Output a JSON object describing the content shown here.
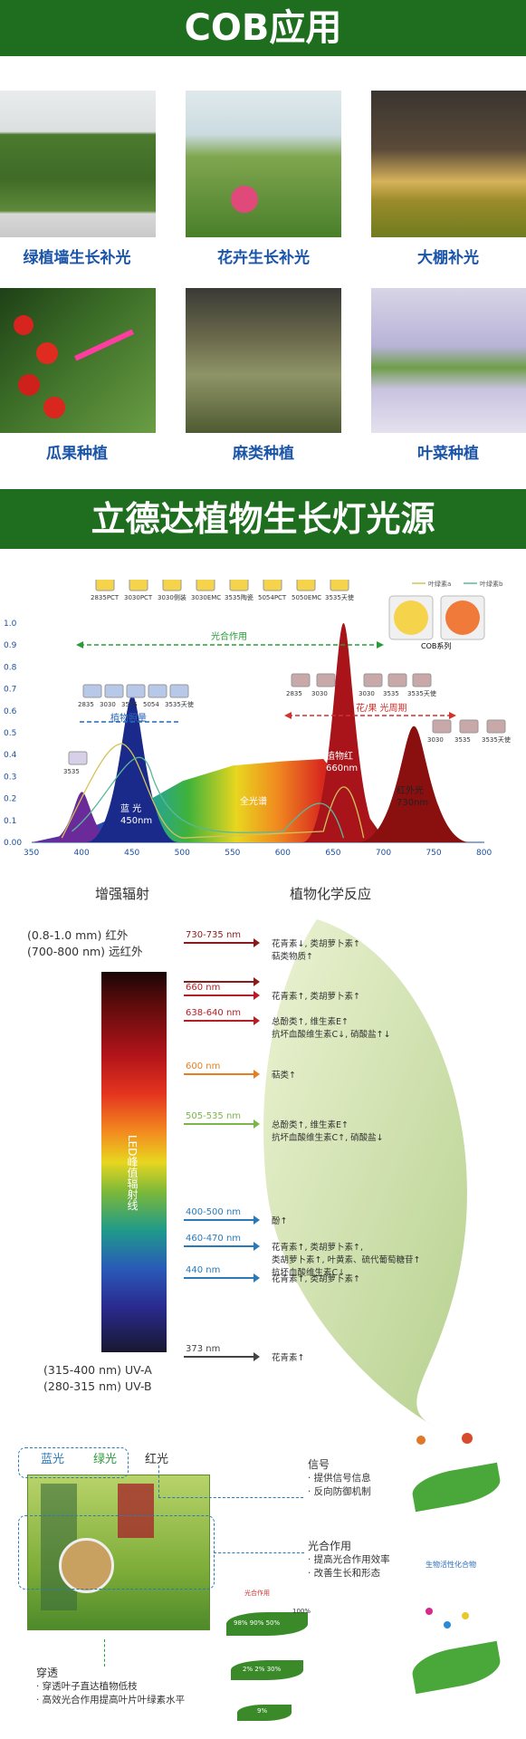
{
  "section1": {
    "title": "COB应用",
    "items": [
      {
        "caption": "绿植墙生长补光"
      },
      {
        "caption": "花卉生长补光"
      },
      {
        "caption": "大棚补光"
      },
      {
        "caption": "瓜果种植"
      },
      {
        "caption": "麻类种植"
      },
      {
        "caption": "叶菜种植"
      }
    ]
  },
  "section2": {
    "title": "立德达植物生长灯光源"
  },
  "spectrum": {
    "legend": [
      "叶绿素a",
      "叶绿素b"
    ],
    "top_chips": [
      "2835PCT",
      "3030PCT",
      "3030侧装",
      "3030EMC",
      "3535陶瓷",
      "5054PCT",
      "5050EMC",
      "3535天使"
    ],
    "cob_label": "COB系列",
    "photosynthesis": "光合作用",
    "plant_growth": "植物照量",
    "blue_chips": [
      "2835",
      "3030",
      "3535",
      "5054",
      "3535天使"
    ],
    "red_chips": [
      "2835",
      "3030"
    ],
    "red_chips2": [
      "3030",
      "3535",
      "3535天使"
    ],
    "flower_period": "花/果  光周期",
    "far_red_chips": [
      "3030",
      "3535",
      "3535天使"
    ],
    "uv_chip": "3535",
    "blue_label": "蓝  光",
    "blue_nm": "450nm",
    "full_label": "全光谱",
    "red_label": "植物红",
    "red_nm": "660nm",
    "farred_label": "红外光",
    "farred_nm": "730nm"
  },
  "chart_data": {
    "type": "area",
    "title": "",
    "xlabel": "",
    "ylabel": "",
    "xlim": [
      350,
      800
    ],
    "ylim": [
      0,
      1.0
    ],
    "x_ticks": [
      350,
      400,
      450,
      500,
      550,
      600,
      650,
      700,
      750,
      800
    ],
    "y_ticks": [
      "0.00",
      "0.1",
      "0.2",
      "0.3",
      "0.4",
      "0.5",
      "0.6",
      "0.7",
      "0.8",
      "0.9",
      "1.0"
    ],
    "peaks": [
      {
        "name": "",
        "x": 400,
        "y": 0.23
      },
      {
        "name": "",
        "x": 450,
        "y": 0.67
      },
      {
        "name": "",
        "x": 660,
        "y": 1.0
      },
      {
        "name": "",
        "x": 730,
        "y": 0.53
      }
    ],
    "full_spectrum": [
      [
        350,
        0
      ],
      [
        400,
        0.05
      ],
      [
        450,
        0.15
      ],
      [
        500,
        0.28
      ],
      [
        550,
        0.35
      ],
      [
        600,
        0.37
      ],
      [
        640,
        0.38
      ],
      [
        680,
        0.15
      ],
      [
        700,
        0.02
      ],
      [
        720,
        0
      ]
    ]
  },
  "chem": {
    "col_left": "增强辐射",
    "col_right": "植物化学反应",
    "ir_lines": [
      "(0.8-1.0 mm) 红外",
      "(700-800 nm) 远红外"
    ],
    "uv_lines": [
      "(315-400 nm) UV-A",
      "(280-315 nm) UV-B"
    ],
    "bar_label": "LED峰值辐射线",
    "rows": [
      {
        "nm": "730-735 nm",
        "effects": [
          "花青素↓, 类胡萝卜素↑",
          "萜类物质↑"
        ],
        "color": "#8b1a1a"
      },
      {
        "nm": "",
        "effects": [],
        "color": "#8b1a1a"
      },
      {
        "nm": "660 nm",
        "effects": [
          "花青素↑, 类胡萝卜素↑"
        ],
        "color": "#b21f24"
      },
      {
        "nm": "638-640 nm",
        "effects": [
          "总酚类↑, 维生素E↑",
          "抗坏血酸维生素C↓, 硝酸盐↑↓"
        ],
        "color": "#b21f24"
      },
      {
        "nm": "600 nm",
        "effects": [
          "萜类↑"
        ],
        "color": "#e67e22"
      },
      {
        "nm": "505-535 nm",
        "effects": [
          "总酚类↑, 维生素E↑",
          "抗坏血酸维生素C↑, 硝酸盐↓"
        ],
        "color": "#7ab648"
      },
      {
        "nm": "400-500 nm",
        "effects": [
          "酚↑"
        ],
        "color": "#2a7ab8"
      },
      {
        "nm": "460-470 nm",
        "effects": [
          "花青素↑, 类胡萝卜素↑,",
          "类胡萝卜素↑, 叶黄素、硫代葡萄糖苷↑",
          "抗坏血酸维生素C↓"
        ],
        "color": "#2a7ab8"
      },
      {
        "nm": "440 nm",
        "effects": [
          "花青素↑, 类胡萝卜素↑"
        ],
        "color": "#2a7ab8"
      },
      {
        "nm": "373 nm",
        "effects": [
          "花青素↑"
        ],
        "color": "#444"
      }
    ]
  },
  "leaf": {
    "top_labels": [
      "蓝光",
      "绿光",
      "红光"
    ],
    "signal_title": "信号",
    "signal_items": [
      "· 提供信号信息",
      "· 反向防御机制"
    ],
    "photo_title": "光合作用",
    "photo_items": [
      "· 提高光合作用效率",
      "· 改善生长和形态"
    ],
    "penetrate_title": "穿透",
    "penetrate_items": [
      "· 穿透叶子直达植物低枝",
      "· 高效光合作用提高叶片叶绿素水平"
    ],
    "bio_label": "生物活性化合物",
    "mini_title": "光合作用",
    "mini_row1": [
      "98%",
      "90%",
      "50%"
    ],
    "mini_100": "100%",
    "mini_row2": [
      "2%",
      "2%",
      "30%"
    ],
    "mini_row3": "9%"
  }
}
